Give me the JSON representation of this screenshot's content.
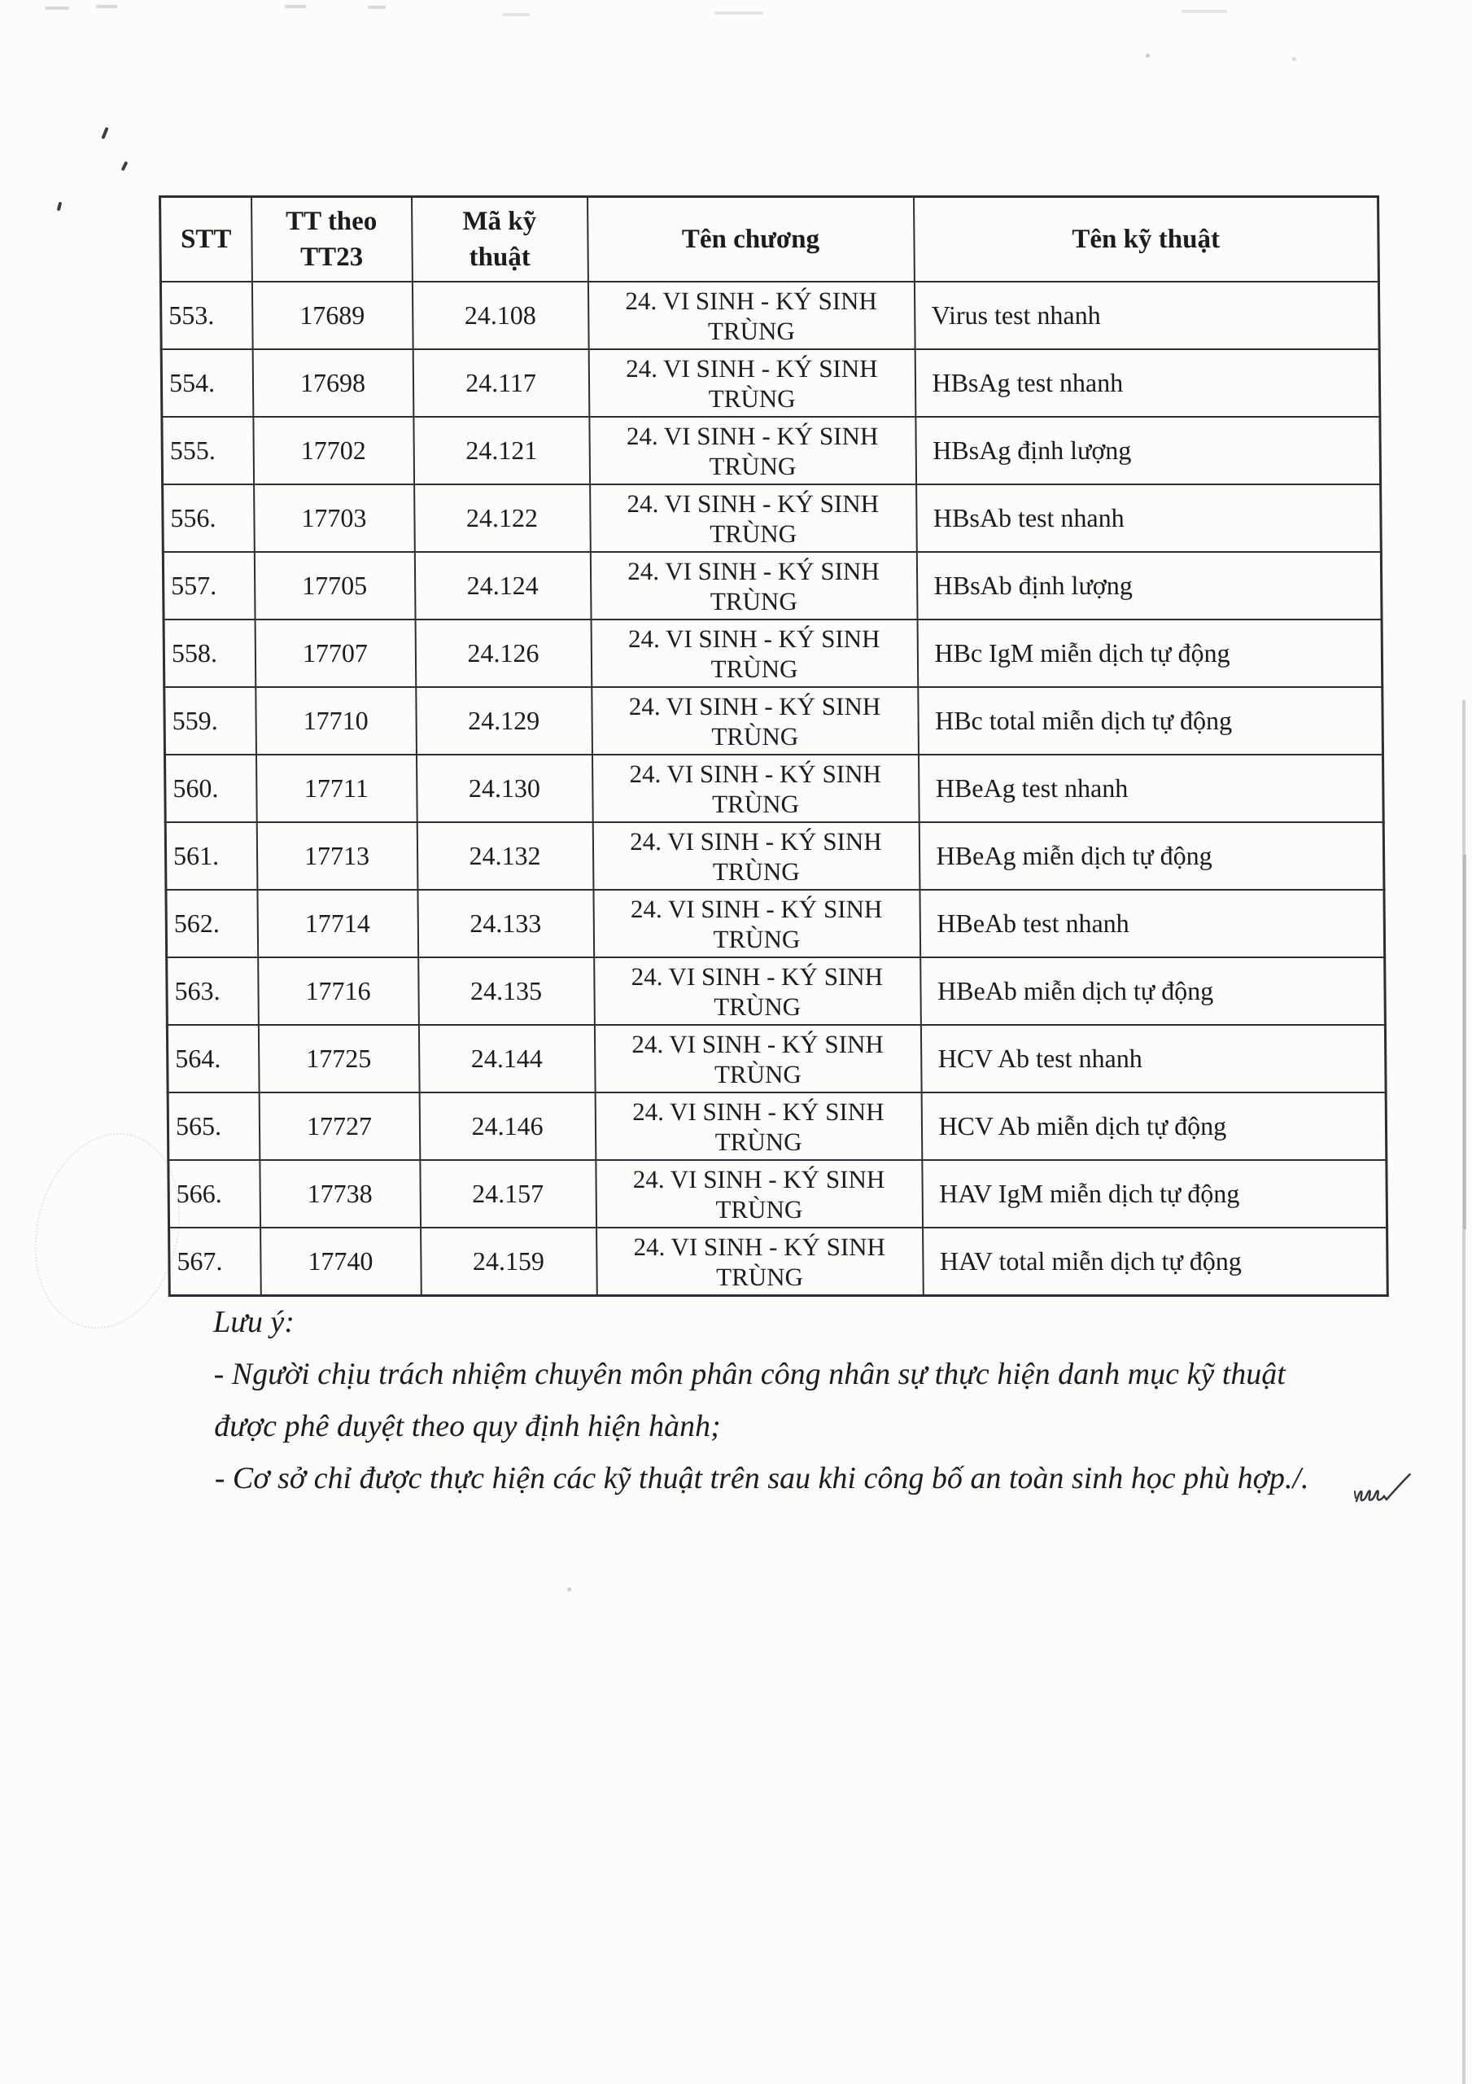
{
  "colors": {
    "paper": "#fcfcfa",
    "ink": "#1b1b20",
    "table_border": "#2d2d33"
  },
  "table": {
    "headers": {
      "stt": "STT",
      "tt_theo_line1": "TT theo",
      "tt_theo_line2": "TT23",
      "ma_line1": "Mã kỹ",
      "ma_line2": "thuật",
      "ten_chuong": "Tên chương",
      "ten_ky_thuat": "Tên kỹ thuật"
    },
    "chapter": {
      "line1": "24. VI SINH - KÝ SINH",
      "line2": "TRÙNG"
    },
    "rows": [
      {
        "stt": "553.",
        "tt23": "17689",
        "ma": "24.108",
        "ten": "Virus test nhanh"
      },
      {
        "stt": "554.",
        "tt23": "17698",
        "ma": "24.117",
        "ten": "HBsAg test nhanh"
      },
      {
        "stt": "555.",
        "tt23": "17702",
        "ma": "24.121",
        "ten": "HBsAg định lượng"
      },
      {
        "stt": "556.",
        "tt23": "17703",
        "ma": "24.122",
        "ten": "HBsAb test nhanh"
      },
      {
        "stt": "557.",
        "tt23": "17705",
        "ma": "24.124",
        "ten": "HBsAb định lượng"
      },
      {
        "stt": "558.",
        "tt23": "17707",
        "ma": "24.126",
        "ten": "HBc IgM miễn dịch tự động"
      },
      {
        "stt": "559.",
        "tt23": "17710",
        "ma": "24.129",
        "ten": "HBc total miễn dịch tự động"
      },
      {
        "stt": "560.",
        "tt23": "17711",
        "ma": "24.130",
        "ten": "HBeAg test nhanh"
      },
      {
        "stt": "561.",
        "tt23": "17713",
        "ma": "24.132",
        "ten": "HBeAg miễn dịch tự động"
      },
      {
        "stt": "562.",
        "tt23": "17714",
        "ma": "24.133",
        "ten": "HBeAb test nhanh"
      },
      {
        "stt": "563.",
        "tt23": "17716",
        "ma": "24.135",
        "ten": "HBeAb miễn dịch tự động"
      },
      {
        "stt": "564.",
        "tt23": "17725",
        "ma": "24.144",
        "ten": "HCV Ab test nhanh"
      },
      {
        "stt": "565.",
        "tt23": "17727",
        "ma": "24.146",
        "ten": "HCV Ab miễn dịch tự động"
      },
      {
        "stt": "566.",
        "tt23": "17738",
        "ma": "24.157",
        "ten": "HAV IgM miễn dịch tự động"
      },
      {
        "stt": "567.",
        "tt23": "17740",
        "ma": "24.159",
        "ten": "HAV total miễn dịch tự động"
      }
    ]
  },
  "notes": {
    "title": "Lưu ý:",
    "line1": "- Người chịu trách nhiệm chuyên môn phân công nhân sự thực hiện danh mục kỹ thuật",
    "line2": "được phê duyệt theo quy định hiện hành;",
    "line3": "- Cơ sở chỉ được thực hiện các kỹ thuật trên sau khi công bố an toàn sinh học phù hợp./."
  }
}
